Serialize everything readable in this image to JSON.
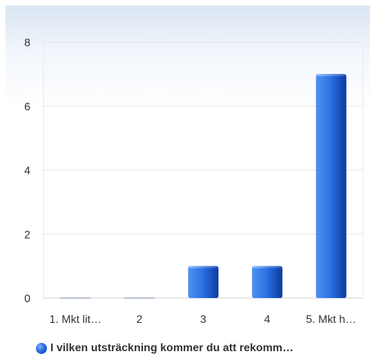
{
  "chart_data": {
    "type": "bar",
    "categories": [
      "1. Mkt lit…",
      "2",
      "3",
      "4",
      "5. Mkt h…"
    ],
    "series": [
      {
        "name": "I vilken utsträckning kommer du att rekomm…",
        "values": [
          0,
          0,
          1,
          1,
          7
        ]
      }
    ],
    "ylim": [
      0,
      8
    ],
    "yticks": [
      0,
      2,
      4,
      6,
      8
    ],
    "grid": true,
    "legend": "bottom",
    "colors": {
      "bar_light": "#5b9bf5",
      "bar_mid": "#2a68db",
      "bar_dark": "#0c3a9e",
      "grid": "#e6e6e6"
    }
  }
}
